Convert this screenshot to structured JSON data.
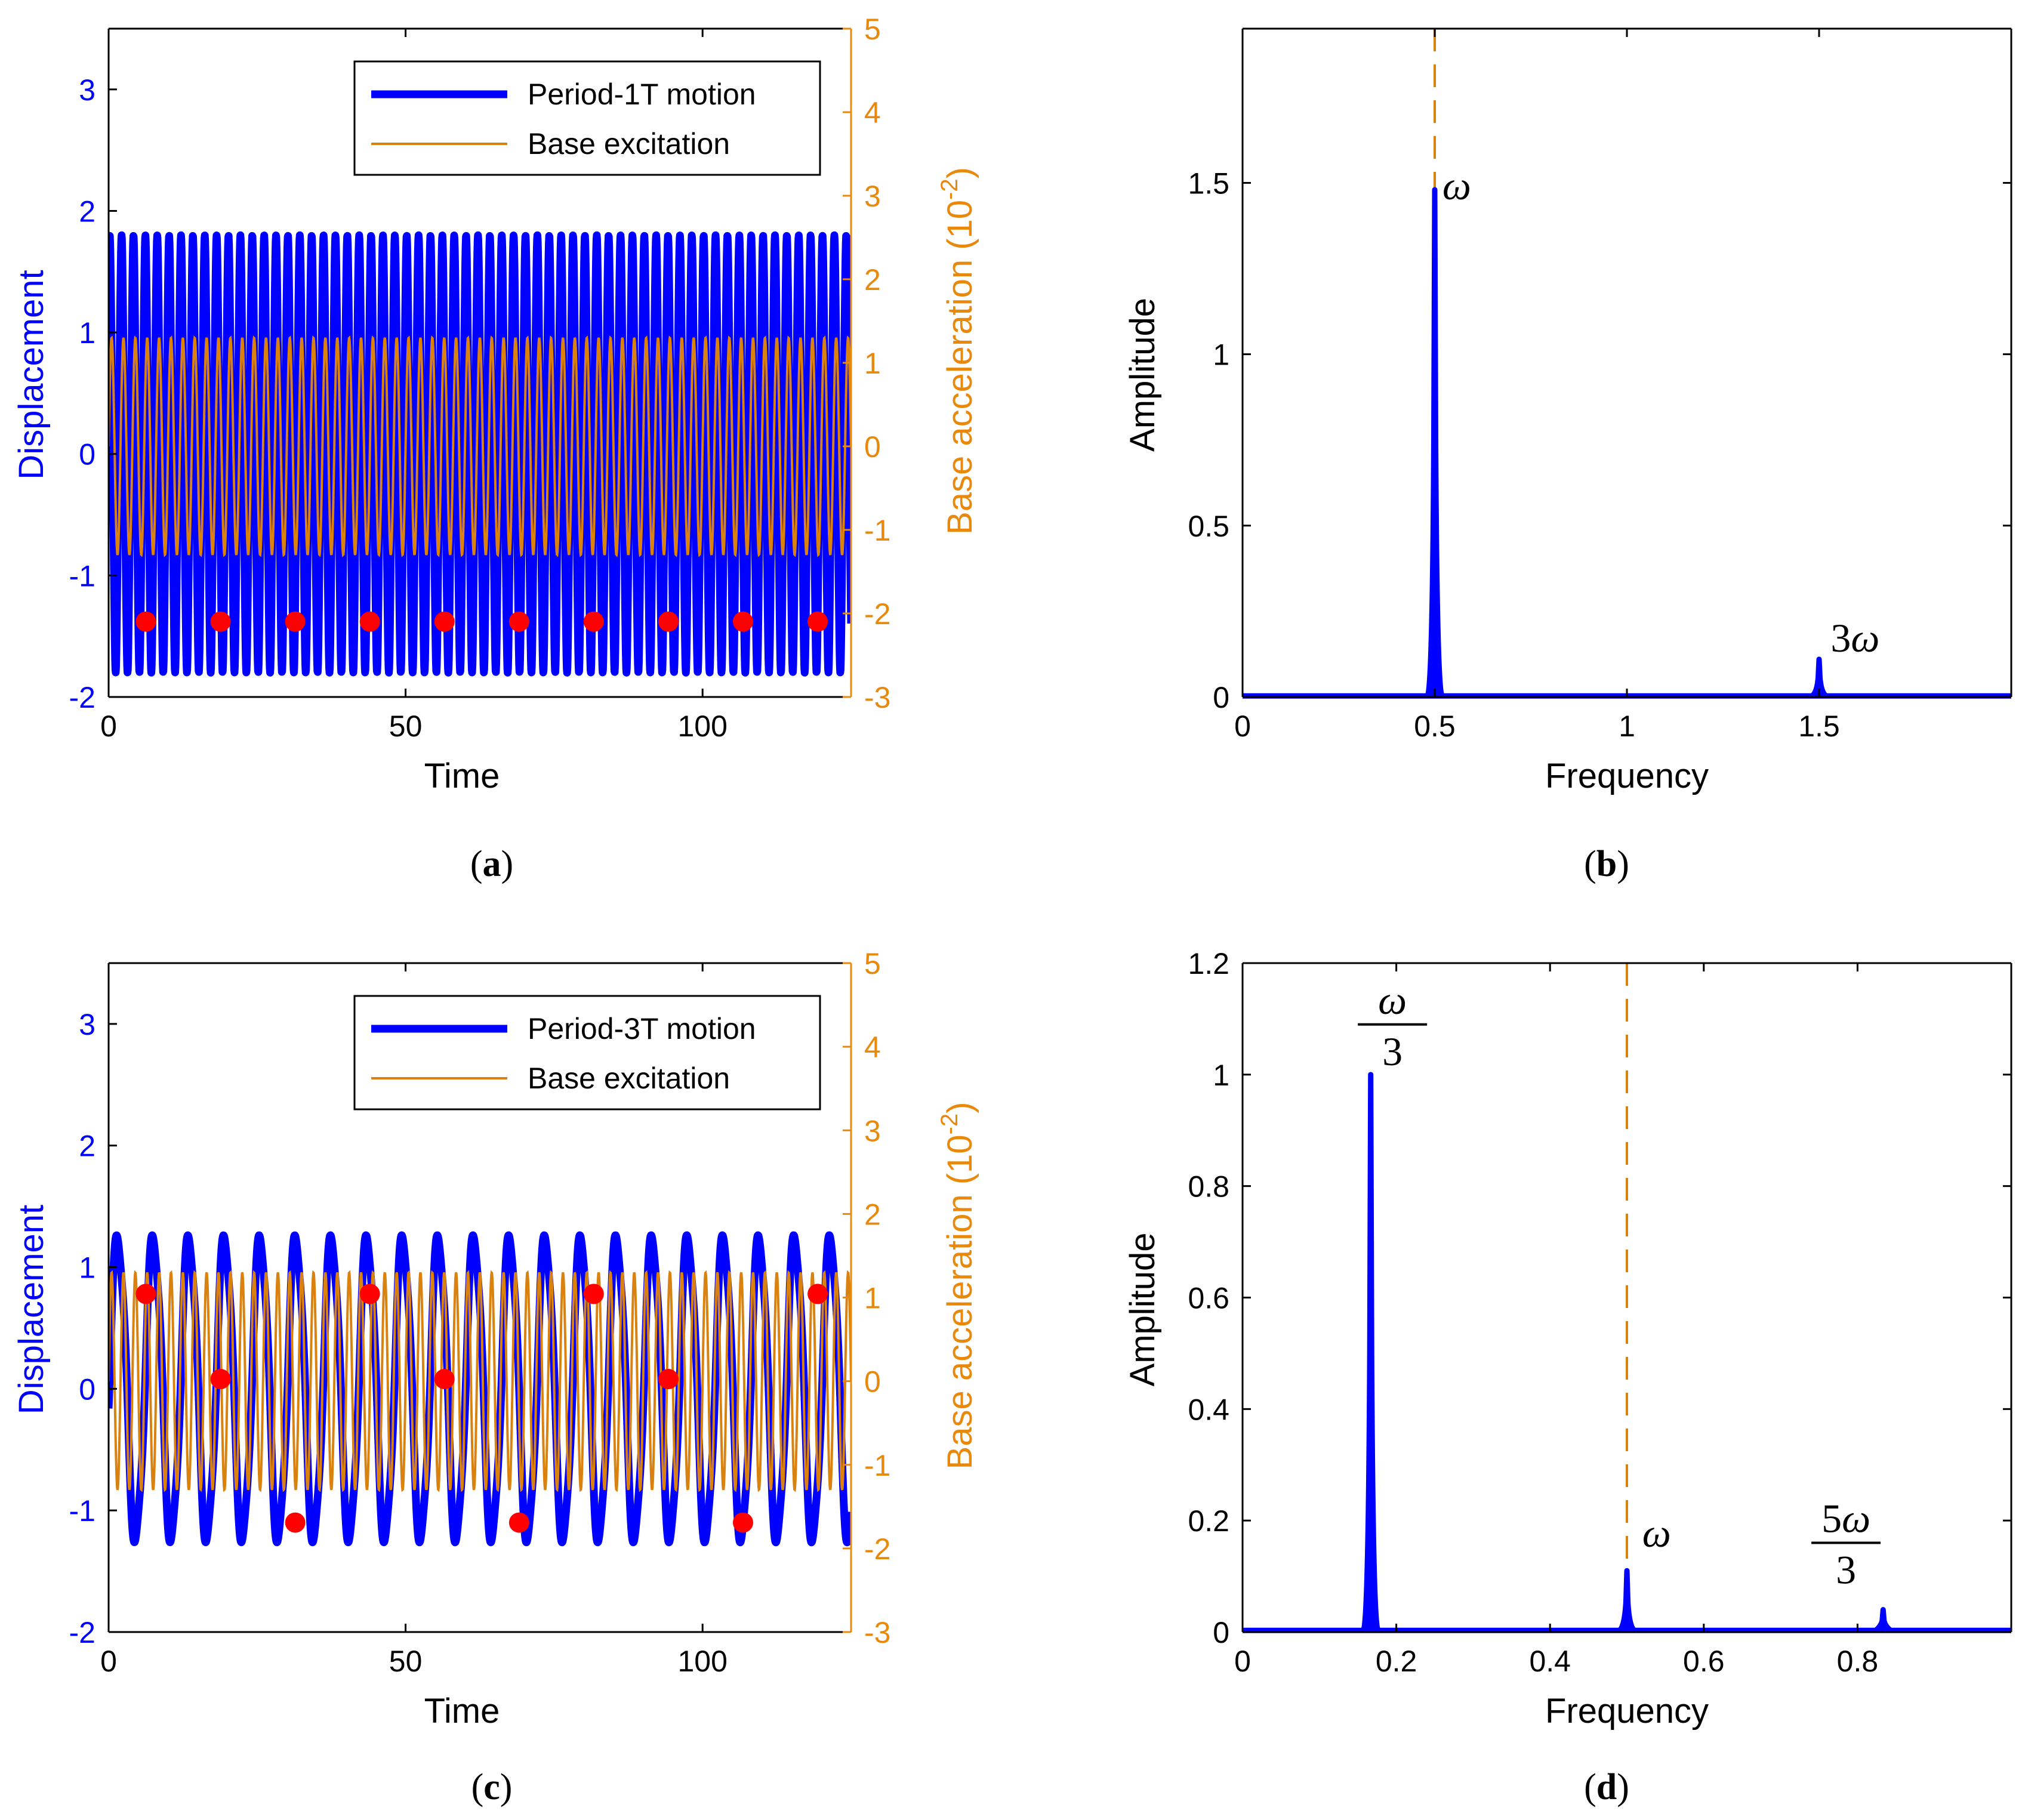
{
  "colors": {
    "displacement": "#0000ff",
    "excitation": "#d9820f",
    "excitation_axis": "#e8890c",
    "poincare": "#ff0000",
    "axis": "#000000"
  },
  "chart_data": [
    {
      "id": "a",
      "type": "line",
      "caption_open": "(",
      "caption_letter": "a",
      "caption_close": ")",
      "xlabel": "Time",
      "ylabel_left": "Displacement",
      "ylabel_right": "Base acceleration (10",
      "ylabel_right_exp": "-2",
      "ylabel_right_close": ")",
      "xlim": [
        0,
        125
      ],
      "ylim_left": [
        -2,
        3.5
      ],
      "ylim_right": [
        -3,
        5
      ],
      "xticks": [
        0,
        50,
        100
      ],
      "xtick_labels": [
        "0",
        "50",
        "100"
      ],
      "yticks_left": [
        -2,
        -1,
        0,
        1,
        2,
        3
      ],
      "ytick_labels_left": [
        "-2",
        "-1",
        "0",
        "1",
        "2",
        "3"
      ],
      "yticks_right": [
        -3,
        -2,
        -1,
        0,
        1,
        2,
        3,
        4,
        5
      ],
      "ytick_labels_right": [
        "-3",
        "-2",
        "-1",
        "0",
        "1",
        "2",
        "3",
        "4",
        "5"
      ],
      "legend": [
        "Period-1T motion",
        "Base excitation"
      ],
      "legend_position": "top-right",
      "series": [
        {
          "name": "Period-1T motion",
          "axis": "left",
          "kind": "harmonic",
          "offset": 0,
          "components": [
            {
              "amp": 1.7,
              "freq": 0.5,
              "phase": 0.99
            },
            {
              "amp": 0.1,
              "freq": 1.5,
              "phase": -0.26
            }
          ]
        },
        {
          "name": "Base excitation",
          "axis": "right",
          "kind": "harmonic",
          "offset": 0,
          "components": [
            {
              "amp": 1.3,
              "freq": 0.5,
              "phase": 0
            }
          ]
        }
      ],
      "markers": {
        "axis": "left",
        "x": [
          6.28,
          18.85,
          31.42,
          43.98,
          56.55,
          69.12,
          81.68,
          94.25,
          106.81,
          119.38
        ],
        "y": [
          -1.38,
          -1.38,
          -1.38,
          -1.38,
          -1.38,
          -1.38,
          -1.38,
          -1.38,
          -1.38,
          -1.38
        ]
      }
    },
    {
      "id": "b",
      "type": "spectrum",
      "caption_open": "(",
      "caption_letter": "b",
      "caption_close": ")",
      "xlabel": "Frequency",
      "ylabel": "Amplitude",
      "xlim": [
        0,
        2
      ],
      "ylim": [
        0,
        1.95
      ],
      "xticks": [
        0,
        0.5,
        1,
        1.5
      ],
      "xtick_labels": [
        "0",
        "0.5",
        "1",
        "1.5"
      ],
      "yticks": [
        0,
        0.5,
        1,
        1.5
      ],
      "ytick_labels": [
        "0",
        "0.5",
        "1",
        "1.5"
      ],
      "peaks": [
        {
          "x": 0.5,
          "y": 1.48
        },
        {
          "x": 1.5,
          "y": 0.11
        }
      ],
      "reference_line_x": 0.5,
      "annotations": [
        {
          "x": 0.52,
          "y": 1.48,
          "text": "ω",
          "prefix": ""
        },
        {
          "x": 1.53,
          "y": 0.16,
          "text": "ω",
          "prefix": "3"
        }
      ]
    },
    {
      "id": "c",
      "type": "line",
      "caption_open": "(",
      "caption_letter": "c",
      "caption_close": ")",
      "xlabel": "Time",
      "ylabel_left": "Displacement",
      "ylabel_right": "Base acceleration (10",
      "ylabel_right_exp": "-2",
      "ylabel_right_close": ")",
      "xlim": [
        0,
        125
      ],
      "ylim_left": [
        -2,
        3.5
      ],
      "ylim_right": [
        -3,
        5
      ],
      "xticks": [
        0,
        50,
        100
      ],
      "xtick_labels": [
        "0",
        "50",
        "100"
      ],
      "yticks_left": [
        -2,
        -1,
        0,
        1,
        2,
        3
      ],
      "ytick_labels_left": [
        "-2",
        "-1",
        "0",
        "1",
        "2",
        "3"
      ],
      "yticks_right": [
        -3,
        -2,
        -1,
        0,
        1,
        2,
        3,
        4,
        5
      ],
      "ytick_labels_right": [
        "-3",
        "-2",
        "-1",
        "0",
        "1",
        "2",
        "3",
        "4",
        "5"
      ],
      "legend": [
        "Period-3T motion",
        "Base excitation"
      ],
      "legend_position": "top-right",
      "series": [
        {
          "name": "Period-3T motion",
          "axis": "left",
          "kind": "harmonic",
          "offset": 0,
          "components": [
            {
              "amp": 1.25,
              "freq": 0.16667,
              "phase": -0.05
            },
            {
              "amp": 0.1,
              "freq": 0.5,
              "phase": -1.5
            }
          ]
        },
        {
          "name": "Base excitation",
          "axis": "right",
          "kind": "harmonic",
          "offset": 0,
          "components": [
            {
              "amp": 1.3,
              "freq": 0.5,
              "phase": 0
            }
          ]
        }
      ],
      "markers": {
        "axis": "left",
        "x": [
          6.28,
          18.85,
          31.42,
          43.98,
          56.55,
          69.12,
          81.68,
          94.25,
          106.81,
          119.38
        ],
        "y": [
          0.78,
          0.08,
          -1.1,
          0.78,
          0.08,
          -1.1,
          0.78,
          0.08,
          -1.1,
          0.78
        ]
      }
    },
    {
      "id": "d",
      "type": "spectrum",
      "caption_open": "(",
      "caption_letter": "d",
      "caption_close": ")",
      "xlabel": "Frequency",
      "ylabel": "Amplitude",
      "xlim": [
        0,
        1
      ],
      "ylim": [
        0,
        1.2
      ],
      "xticks": [
        0,
        0.2,
        0.4,
        0.6,
        0.8
      ],
      "xtick_labels": [
        "0",
        "0.2",
        "0.4",
        "0.6",
        "0.8"
      ],
      "yticks": [
        0,
        0.2,
        0.4,
        0.6,
        0.8,
        1,
        1.2
      ],
      "ytick_labels": [
        "0",
        "0.2",
        "0.4",
        "0.6",
        "0.8",
        "1",
        "1.2"
      ],
      "peaks": [
        {
          "x": 0.1667,
          "y": 1.0
        },
        {
          "x": 0.5,
          "y": 0.11
        },
        {
          "x": 0.8333,
          "y": 0.04
        }
      ],
      "reference_line_x": 0.5,
      "annotations": [
        {
          "x": 0.195,
          "y": 1.09,
          "frac_num": "ω",
          "frac_num_prefix": "",
          "frac_den": "3"
        },
        {
          "x": 0.52,
          "y": 0.17,
          "text": "ω",
          "prefix": ""
        },
        {
          "x": 0.785,
          "y": 0.16,
          "frac_num": "ω",
          "frac_num_prefix": "5",
          "frac_den": "3"
        }
      ]
    }
  ]
}
